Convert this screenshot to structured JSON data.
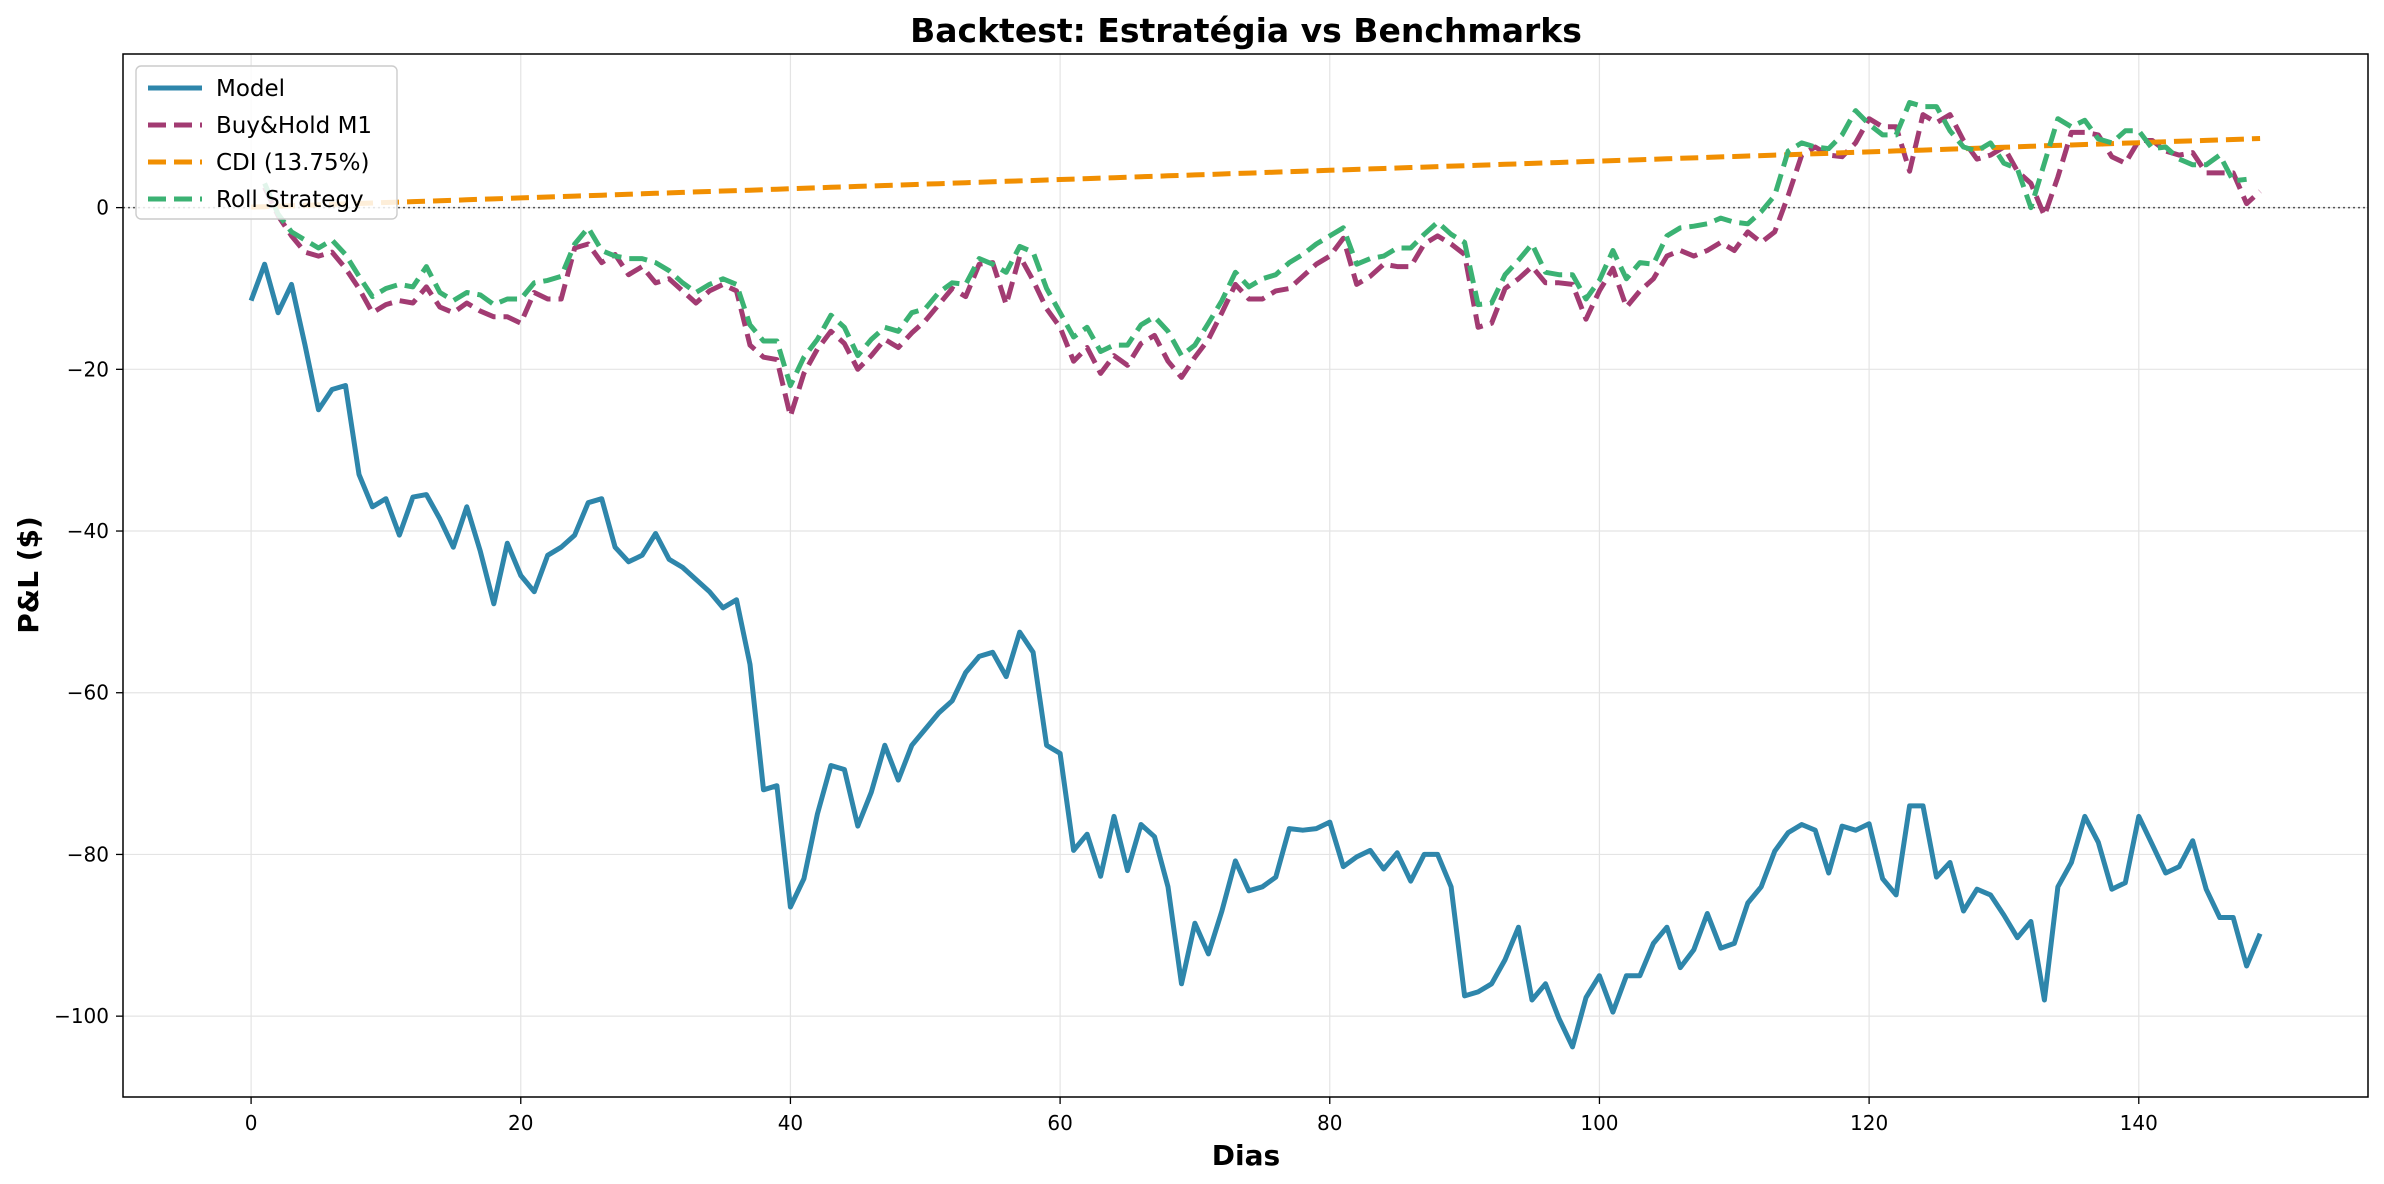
{
  "chart_data": {
    "type": "line",
    "title": "Backtest: Estratégia vs Benchmarks",
    "xlabel": "Dias",
    "ylabel": "P&L ($)",
    "xlim": [
      -9.5,
      157
    ],
    "ylim": [
      -110,
      19
    ],
    "xticks": [
      0,
      20,
      40,
      60,
      80,
      100,
      120,
      140
    ],
    "yticks": [
      -100,
      -80,
      -60,
      -40,
      -20,
      0
    ],
    "grid": true,
    "zero_line": true,
    "legend_position": "top-left",
    "series": [
      {
        "name": "Model",
        "color": "#2E86AB",
        "style": "solid",
        "values": [
          -11.5,
          -7,
          -13,
          -9.5,
          -17,
          -25,
          -22.5,
          -22,
          -33,
          -37,
          -36,
          -40.5,
          -35.8,
          -35.5,
          -38.5,
          -42,
          -37,
          -42.5,
          -49,
          -41.5,
          -45.5,
          -47.5,
          -43,
          -42,
          -40.5,
          -36.5,
          -36,
          -42,
          -43.8,
          -43,
          -40.3,
          -43.5,
          -44.5,
          -46,
          -47.5,
          -49.5,
          -48.5,
          -56.5,
          -72,
          -71.5,
          -86.5,
          -83,
          -75,
          -69,
          -69.5,
          -76.5,
          -72.3,
          -66.5,
          -70.8,
          -66.5,
          -64.5,
          -62.5,
          -61,
          -57.5,
          -55.5,
          -55,
          -58,
          -52.5,
          -55,
          -66.5,
          -67.5,
          -79.5,
          -77.5,
          -82.7,
          -75.3,
          -82,
          -76.3,
          -77.8,
          -84,
          -96,
          -88.5,
          -92.3,
          -87,
          -80.8,
          -84.5,
          -84,
          -82.8,
          -76.8,
          -77,
          -76.8,
          -76,
          -81.5,
          -80.3,
          -79.5,
          -81.8,
          -79.8,
          -83.3,
          -80,
          -80,
          -84,
          -97.5,
          -97,
          -96,
          -93,
          -89,
          -98,
          -96,
          -100.3,
          -103.8,
          -97.7,
          -95,
          -99.5,
          -95,
          -95,
          -91,
          -89,
          -94,
          -91.8,
          -87.3,
          -91.6,
          -91,
          -86,
          -84,
          -79.6,
          -77.3,
          -76.3,
          -77,
          -82.3,
          -76.5,
          -77,
          -76.2,
          -83,
          -85,
          -74,
          -74,
          -82.8,
          -81,
          -87,
          -84.3,
          -85,
          -87.5,
          -90.3,
          -88.3,
          -98,
          -84,
          -81,
          -75.3,
          -78.5,
          -84.3,
          -83.5,
          -75.3,
          -78.8,
          -82.3,
          -81.5,
          -78.3,
          -84.3,
          -87.8,
          -87.8,
          -93.8,
          -89.8
        ]
      },
      {
        "name": "Buy&Hold M1",
        "color": "#A23B72",
        "style": "dashed",
        "values": [
          null,
          2.5,
          -1,
          -3.5,
          -5.5,
          -6,
          -5.5,
          -7.5,
          -10,
          -13,
          -12,
          -11.5,
          -11.8,
          -9.8,
          -12.3,
          -13,
          -11.8,
          -12.8,
          -13.5,
          -13.5,
          -14.3,
          -10.5,
          -11.3,
          -11.3,
          -5,
          -4.5,
          -6.8,
          -5.8,
          -8.3,
          -7.3,
          -9.3,
          -8.8,
          -10.3,
          -11.8,
          -10.3,
          -9.5,
          -10.3,
          -17,
          -18.5,
          -18.8,
          -25.8,
          -20.5,
          -17.5,
          -15.3,
          -16.8,
          -20,
          -18.3,
          -16.3,
          -17.3,
          -15.5,
          -14,
          -12,
          -10,
          -11,
          -7,
          -6.8,
          -12,
          -6,
          -9,
          -12.5,
          -14.8,
          -19,
          -17.3,
          -20.5,
          -18.3,
          -19.5,
          -16.8,
          -15.8,
          -19,
          -21,
          -18.5,
          -16.3,
          -13,
          -9.5,
          -11.3,
          -11.3,
          -10.3,
          -10,
          -8.5,
          -7,
          -6,
          -3.8,
          -9.5,
          -8.5,
          -7,
          -7.3,
          -7.3,
          -4.5,
          -3.5,
          -4.5,
          -5.8,
          -14.8,
          -14.3,
          -10,
          -8.8,
          -7.3,
          -9.3,
          -9.3,
          -9.5,
          -13.8,
          -10.3,
          -7.5,
          -12.3,
          -10.3,
          -8.8,
          -6,
          -5.3,
          -6,
          -5.3,
          -4.3,
          -5.3,
          -3,
          -4.3,
          -3,
          1.5,
          6.5,
          7.5,
          6.5,
          6.3,
          8,
          11,
          10,
          10,
          4.5,
          11.5,
          10.5,
          11.5,
          8.3,
          6,
          6.5,
          7.5,
          4.5,
          3,
          -1,
          3.8,
          9.3,
          9.3,
          9,
          6.3,
          5.5,
          8.3,
          8.3,
          7,
          6.5,
          6.8,
          4.3,
          4.3,
          4.3,
          0.5,
          2
        ]
      },
      {
        "name": "CDI (13.75%)",
        "color": "#F18F01",
        "style": "dashed",
        "values": [
          0.06,
          0.11,
          0.17,
          0.23,
          0.28,
          0.34,
          0.4,
          0.46,
          0.51,
          0.57,
          0.63,
          0.68,
          0.74,
          0.8,
          0.85,
          0.91,
          0.97,
          1.03,
          1.08,
          1.14,
          1.2,
          1.25,
          1.31,
          1.37,
          1.42,
          1.48,
          1.54,
          1.6,
          1.65,
          1.71,
          1.77,
          1.82,
          1.88,
          1.94,
          1.99,
          2.05,
          2.11,
          2.16,
          2.22,
          2.28,
          2.34,
          2.39,
          2.45,
          2.51,
          2.56,
          2.62,
          2.68,
          2.73,
          2.79,
          2.85,
          2.91,
          2.96,
          3.02,
          3.08,
          3.13,
          3.19,
          3.25,
          3.3,
          3.36,
          3.42,
          3.48,
          3.53,
          3.59,
          3.65,
          3.7,
          3.76,
          3.82,
          3.87,
          3.93,
          3.99,
          4.05,
          4.1,
          4.16,
          4.22,
          4.27,
          4.33,
          4.39,
          4.44,
          4.5,
          4.56,
          4.62,
          4.67,
          4.73,
          4.79,
          4.84,
          4.9,
          4.96,
          5.01,
          5.07,
          5.13,
          5.18,
          5.24,
          5.3,
          5.36,
          5.41,
          5.47,
          5.53,
          5.58,
          5.64,
          5.7,
          5.75,
          5.81,
          5.87,
          5.93,
          5.98,
          6.04,
          6.1,
          6.15,
          6.21,
          6.27,
          6.32,
          6.38,
          6.44,
          6.5,
          6.55,
          6.61,
          6.67,
          6.72,
          6.78,
          6.84,
          6.89,
          6.95,
          7.01,
          7.07,
          7.12,
          7.18,
          7.24,
          7.29,
          7.35,
          7.41,
          7.46,
          7.52,
          7.58,
          7.64,
          7.69,
          7.75,
          7.81,
          7.86,
          7.92,
          7.98,
          8.03,
          8.09,
          8.15,
          8.21,
          8.26,
          8.32,
          8.38,
          8.43,
          8.49,
          8.55
        ]
      },
      {
        "name": "Roll Strategy",
        "color": "#3BB273",
        "style": "dashed",
        "values": [
          null,
          3,
          -0.8,
          -3,
          -4,
          -5,
          -4,
          -5.8,
          -8.5,
          -11,
          -10,
          -9.5,
          -9.8,
          -7.3,
          -10.5,
          -11.5,
          -10.5,
          -10.8,
          -12,
          -11.3,
          -11.3,
          -9.3,
          -9,
          -8.5,
          -4.5,
          -2.5,
          -5.3,
          -6,
          -6.3,
          -6.3,
          -6.8,
          -7.8,
          -9.3,
          -10.5,
          -9.5,
          -8.8,
          -9.5,
          -14.5,
          -16.5,
          -16.5,
          -22,
          -18.5,
          -16.3,
          -13.3,
          -14.8,
          -18.3,
          -16.3,
          -14.8,
          -15.3,
          -13,
          -12.5,
          -10.5,
          -9.3,
          -9.5,
          -6.3,
          -7,
          -8,
          -4.8,
          -5.5,
          -10,
          -13,
          -16,
          -14.8,
          -17.8,
          -17,
          -17,
          -14.5,
          -13.5,
          -15.3,
          -18.3,
          -17,
          -14.3,
          -11.5,
          -8,
          -9.8,
          -8.8,
          -8.3,
          -6.8,
          -5.8,
          -4.5,
          -3.5,
          -2.5,
          -7,
          -6.3,
          -6,
          -5,
          -5,
          -3.3,
          -1.8,
          -3.3,
          -4.3,
          -12,
          -11.8,
          -8.3,
          -6.5,
          -4.5,
          -8,
          -8.3,
          -8.3,
          -11.3,
          -9,
          -5.3,
          -8.8,
          -6.8,
          -7,
          -3.5,
          -2.5,
          -2.3,
          -2,
          -1.3,
          -1.8,
          -2,
          -0.5,
          1.5,
          7,
          8,
          7.5,
          7.3,
          9,
          12,
          10.3,
          9,
          9,
          13,
          12.5,
          12.5,
          9.5,
          7.5,
          7,
          8,
          5.5,
          4.8,
          0,
          5.5,
          11,
          10,
          10.8,
          8.5,
          8,
          9.5,
          9.5,
          7.3,
          7.5,
          6,
          5.3,
          5.3,
          6.5,
          3.3,
          3.5
        ]
      }
    ]
  }
}
